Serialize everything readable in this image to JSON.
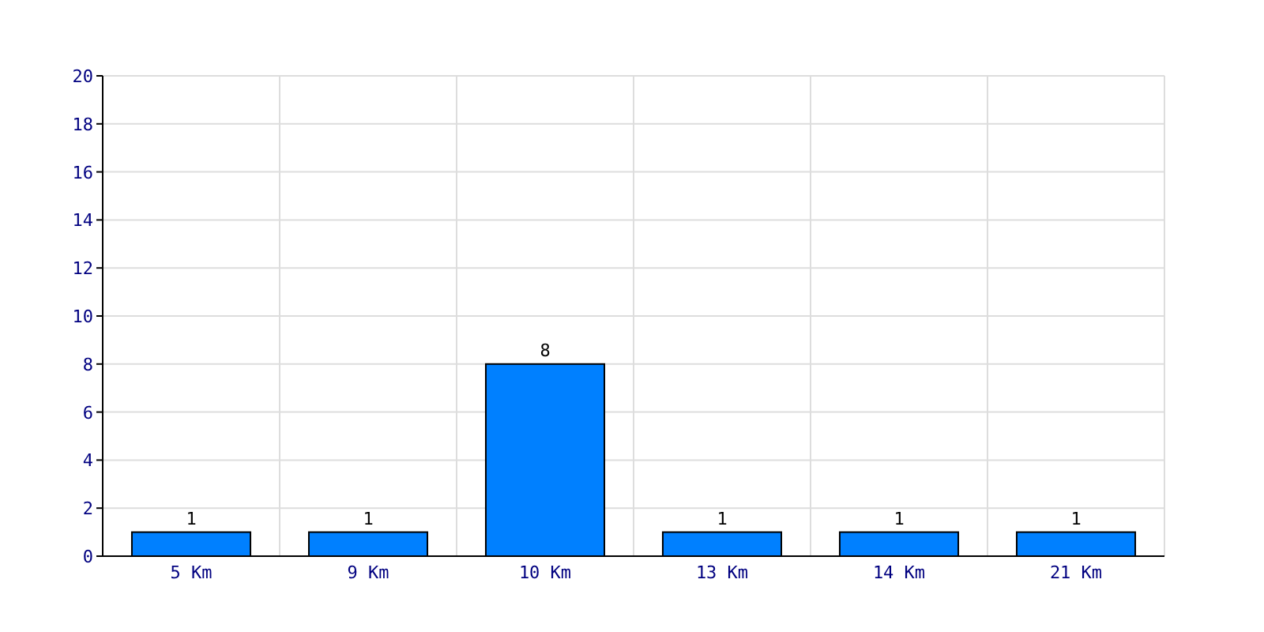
{
  "chart_data": {
    "type": "bar",
    "categories": [
      "5 Km",
      "9 Km",
      "10 Km",
      "13 Km",
      "14 Km",
      "21 Km"
    ],
    "values": [
      1,
      1,
      8,
      1,
      1,
      1
    ],
    "color": "#0080ff",
    "ylim": [
      0,
      20
    ],
    "yticks": [
      0,
      2,
      4,
      6,
      8,
      10,
      12,
      14,
      16,
      18,
      20
    ],
    "grid": true,
    "data_labels": true
  }
}
